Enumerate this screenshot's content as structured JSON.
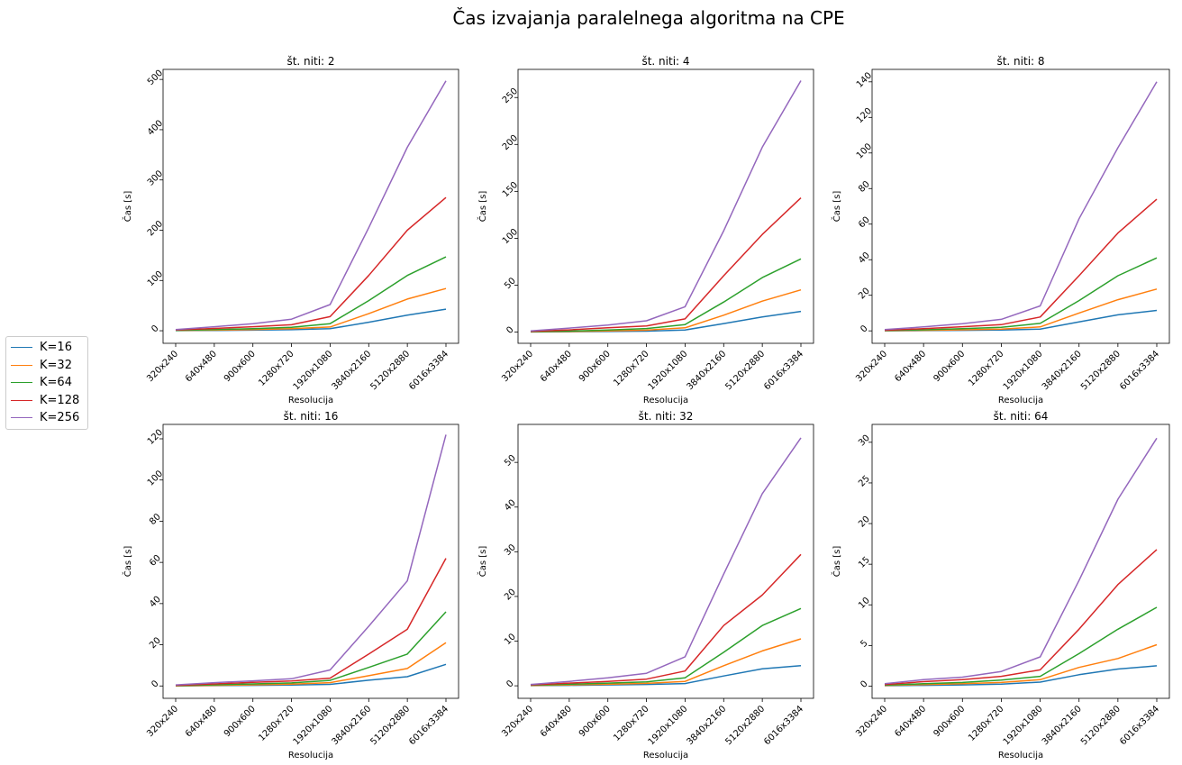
{
  "chart_data": {
    "type": "line",
    "title": "Čas izvajanja paralelnega algoritma na CPE",
    "categories": [
      "320x240",
      "640x480",
      "900x600",
      "1280x720",
      "1920x1080",
      "3840x2160",
      "5120x2880",
      "6016x3384"
    ],
    "legend": {
      "placement": "left",
      "entries": [
        {
          "name": "K=16",
          "color": "#1f77b4"
        },
        {
          "name": "K=32",
          "color": "#ff7f0e"
        },
        {
          "name": "K=64",
          "color": "#2ca02c"
        },
        {
          "name": "K=128",
          "color": "#d62728"
        },
        {
          "name": "K=256",
          "color": "#9467bd"
        }
      ]
    },
    "grid": false,
    "subplots": [
      {
        "title": "št. niti: 2",
        "xlabel": "Resolucija",
        "ylabel": "Čas [s]",
        "ylim": [
          -25,
          520
        ],
        "yticks": [
          0,
          100,
          200,
          300,
          400,
          500
        ],
        "series": [
          {
            "name": "K=16",
            "color": "#1f77b4",
            "values": [
              0.2,
              0.6,
              1.2,
              2.0,
              4.0,
              17,
              31,
              43
            ]
          },
          {
            "name": "K=32",
            "color": "#ff7f0e",
            "values": [
              0.4,
              1.2,
              2.3,
              4.0,
              7.5,
              34,
              63,
              84
            ]
          },
          {
            "name": "K=64",
            "color": "#2ca02c",
            "values": [
              0.7,
              2.2,
              4.0,
              7.0,
              14,
              60,
              110,
              147
            ]
          },
          {
            "name": "K=128",
            "color": "#d62728",
            "values": [
              1.3,
              4.5,
              8,
              12,
              28,
              110,
              200,
              265
            ]
          },
          {
            "name": "K=256",
            "color": "#9467bd",
            "values": [
              2.5,
              8,
              14,
              23,
              52,
              205,
              365,
              497
            ]
          }
        ]
      },
      {
        "title": "št. niti: 4",
        "xlabel": "Resolucija",
        "ylabel": "Čas [s]",
        "ylim": [
          -12,
          280
        ],
        "yticks": [
          0,
          50,
          100,
          150,
          200,
          250
        ],
        "series": [
          {
            "name": "K=16",
            "color": "#1f77b4",
            "values": [
              0.1,
              0.3,
              0.6,
              1.0,
              2.2,
              9,
              16,
              22
            ]
          },
          {
            "name": "K=32",
            "color": "#ff7f0e",
            "values": [
              0.2,
              0.6,
              1.2,
              2.0,
              4.5,
              18,
              33,
              45
            ]
          },
          {
            "name": "K=64",
            "color": "#2ca02c",
            "values": [
              0.4,
              1.1,
              2.2,
              3.8,
              8,
              32,
              58,
              78
            ]
          },
          {
            "name": "K=128",
            "color": "#d62728",
            "values": [
              0.7,
              2.3,
              4.5,
              6.5,
              14,
              60,
              104,
              143
            ]
          },
          {
            "name": "K=256",
            "color": "#9467bd",
            "values": [
              1.2,
              4.2,
              7.5,
              12,
              27,
              108,
              197,
              268
            ]
          }
        ]
      },
      {
        "title": "št. niti: 8",
        "xlabel": "Resolucija",
        "ylabel": "Čas [s]",
        "ylim": [
          -7,
          147
        ],
        "yticks": [
          0,
          20,
          40,
          60,
          80,
          100,
          120,
          140
        ],
        "series": [
          {
            "name": "K=16",
            "color": "#1f77b4",
            "values": [
              0.05,
              0.15,
              0.3,
              0.5,
              1.0,
              5,
              9,
              11.5
            ]
          },
          {
            "name": "K=32",
            "color": "#ff7f0e",
            "values": [
              0.1,
              0.3,
              0.6,
              1.0,
              2.2,
              10,
              17.5,
              23.5
            ]
          },
          {
            "name": "K=64",
            "color": "#2ca02c",
            "values": [
              0.2,
              0.6,
              1.2,
              2.0,
              4.2,
              17,
              31,
              41
            ]
          },
          {
            "name": "K=128",
            "color": "#d62728",
            "values": [
              0.35,
              1.2,
              2.3,
              3.5,
              7.8,
              31,
              55,
              74
            ]
          },
          {
            "name": "K=256",
            "color": "#9467bd",
            "values": [
              0.7,
              2.2,
              4.0,
              6.5,
              14,
              63,
              103,
              140
            ]
          }
        ]
      },
      {
        "title": "št. niti: 16",
        "xlabel": "Resolucija",
        "ylabel": "Čas [s]",
        "ylim": [
          -6,
          127
        ],
        "yticks": [
          0,
          20,
          40,
          60,
          80,
          100,
          120
        ],
        "series": [
          {
            "name": "K=16",
            "color": "#1f77b4",
            "values": [
              0.05,
              0.15,
              0.3,
              0.45,
              0.8,
              2.8,
              4.5,
              10.5
            ]
          },
          {
            "name": "K=32",
            "color": "#ff7f0e",
            "values": [
              0.1,
              0.3,
              0.55,
              0.9,
              1.6,
              5,
              8.5,
              21
            ]
          },
          {
            "name": "K=64",
            "color": "#2ca02c",
            "values": [
              0.15,
              0.55,
              1.0,
              1.5,
              2.7,
              9,
              15.5,
              36
            ]
          },
          {
            "name": "K=128",
            "color": "#d62728",
            "values": [
              0.3,
              1.0,
              1.8,
              2.4,
              3.8,
              15.5,
              27.5,
              62
            ]
          },
          {
            "name": "K=256",
            "color": "#9467bd",
            "values": [
              0.5,
              1.6,
              2.5,
              3.5,
              7.8,
              29,
              51,
              122
            ]
          }
        ]
      },
      {
        "title": "št. niti: 32",
        "xlabel": "Resolucija",
        "ylabel": "Čas [s]",
        "ylim": [
          -2.8,
          58.5
        ],
        "yticks": [
          0,
          10,
          20,
          30,
          40,
          50
        ],
        "series": [
          {
            "name": "K=16",
            "color": "#1f77b4",
            "values": [
              0.05,
              0.1,
              0.2,
              0.3,
              0.5,
              2.2,
              3.8,
              4.5
            ]
          },
          {
            "name": "K=32",
            "color": "#ff7f0e",
            "values": [
              0.08,
              0.2,
              0.35,
              0.55,
              1.0,
              4.5,
              7.8,
              10.5
            ]
          },
          {
            "name": "K=64",
            "color": "#2ca02c",
            "values": [
              0.12,
              0.35,
              0.6,
              0.9,
              1.8,
              7.5,
              13.5,
              17.3
            ]
          },
          {
            "name": "K=128",
            "color": "#d62728",
            "values": [
              0.2,
              0.6,
              1.0,
              1.5,
              3.3,
              13.5,
              20.3,
              29.4
            ]
          },
          {
            "name": "K=256",
            "color": "#9467bd",
            "values": [
              0.3,
              1.0,
              1.8,
              2.8,
              6.5,
              25,
              43,
              55.5
            ]
          }
        ]
      },
      {
        "title": "št. niti: 64",
        "xlabel": "Resolucija",
        "ylabel": "Čas [s]",
        "ylim": [
          -1.5,
          32.2
        ],
        "yticks": [
          0,
          5,
          10,
          15,
          20,
          25,
          30
        ],
        "series": [
          {
            "name": "K=16",
            "color": "#1f77b4",
            "values": [
              0.05,
              0.1,
              0.15,
              0.25,
              0.5,
              1.4,
              2.1,
              2.5
            ]
          },
          {
            "name": "K=32",
            "color": "#ff7f0e",
            "values": [
              0.08,
              0.2,
              0.3,
              0.45,
              0.8,
              2.3,
              3.4,
              5.1
            ]
          },
          {
            "name": "K=64",
            "color": "#2ca02c",
            "values": [
              0.12,
              0.3,
              0.45,
              0.75,
              1.2,
              4.0,
              7.0,
              9.7
            ]
          },
          {
            "name": "K=128",
            "color": "#d62728",
            "values": [
              0.2,
              0.55,
              0.8,
              1.2,
              2.0,
              7.0,
              12.5,
              16.8
            ]
          },
          {
            "name": "K=256",
            "color": "#9467bd",
            "values": [
              0.3,
              0.8,
              1.1,
              1.8,
              3.6,
              13,
              23,
              30.5
            ]
          }
        ]
      }
    ]
  }
}
